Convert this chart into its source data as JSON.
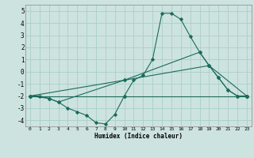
{
  "xlabel": "Humidex (Indice chaleur)",
  "ylabel": "",
  "xlim": [
    -0.5,
    23.5
  ],
  "ylim": [
    -4.5,
    5.5
  ],
  "yticks": [
    -4,
    -3,
    -2,
    -1,
    0,
    1,
    2,
    3,
    4,
    5
  ],
  "xticks": [
    0,
    1,
    2,
    3,
    4,
    5,
    6,
    7,
    8,
    9,
    10,
    11,
    12,
    13,
    14,
    15,
    16,
    17,
    18,
    19,
    20,
    21,
    22,
    23
  ],
  "background_color": "#cde3e0",
  "grid_color": "#aaceca",
  "line_color": "#1a6b5a",
  "series": [
    {
      "x": [
        0,
        1,
        2,
        3,
        4,
        5,
        6,
        7,
        8,
        9,
        10,
        11,
        12,
        13,
        14,
        15,
        16,
        17,
        18,
        19,
        20,
        21,
        22,
        23
      ],
      "y": [
        -2,
        -2,
        -2.2,
        -2.5,
        -3.0,
        -3.3,
        -3.6,
        -4.2,
        -4.3,
        -3.5,
        -2.0,
        -0.7,
        -0.3,
        1.0,
        4.8,
        4.8,
        4.3,
        2.9,
        1.6,
        0.5,
        -0.5,
        -1.5,
        -2,
        -2
      ]
    },
    {
      "x": [
        0,
        2,
        3,
        10,
        18,
        19,
        20,
        21,
        22,
        23
      ],
      "y": [
        -2,
        -2.2,
        -2.5,
        -0.7,
        1.6,
        0.5,
        -0.5,
        -1.5,
        -2,
        -2
      ]
    },
    {
      "x": [
        0,
        10,
        19,
        23
      ],
      "y": [
        -2,
        -0.7,
        0.5,
        -2
      ]
    },
    {
      "x": [
        0,
        10,
        23
      ],
      "y": [
        -2,
        -2,
        -2
      ]
    }
  ]
}
